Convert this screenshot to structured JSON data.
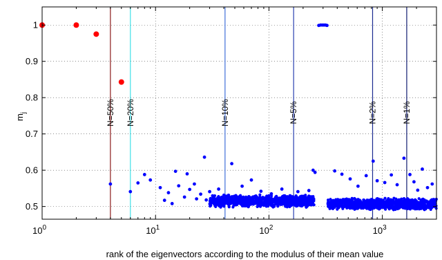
{
  "chart_data": {
    "type": "scatter",
    "title": "",
    "xlabel": "rank of the eigenvectors according to the modulus of their mean value",
    "ylabel": "m",
    "ylabel_subscript": "j",
    "xscale": "log",
    "xlim": [
      1,
      3000
    ],
    "ylim": [
      0.465,
      1.05
    ],
    "grid": true,
    "grid_style": "dotted",
    "x_ticks": [
      {
        "value": 1,
        "base": "10",
        "exp": "0"
      },
      {
        "value": 10,
        "base": "10",
        "exp": "1"
      },
      {
        "value": 100,
        "base": "10",
        "exp": "2"
      },
      {
        "value": 1000,
        "base": "10",
        "exp": "3"
      }
    ],
    "y_ticks": [
      {
        "value": 0.5,
        "label": "0.5"
      },
      {
        "value": 0.6,
        "label": "0.6"
      },
      {
        "value": 0.7,
        "label": "0.7"
      },
      {
        "value": 0.8,
        "label": "0.8"
      },
      {
        "value": 0.9,
        "label": "0.9"
      },
      {
        "value": 1.0,
        "label": "1"
      }
    ],
    "vertical_lines": [
      {
        "x": 4,
        "label": "N=50%",
        "color": "#8b1a1a"
      },
      {
        "x": 6,
        "label": "N=20%",
        "color": "#40e0e8"
      },
      {
        "x": 41,
        "label": "N=10%",
        "color": "#3f6fd8"
      },
      {
        "x": 165,
        "label": "N=5%",
        "color": "#2a3fb0"
      },
      {
        "x": 820,
        "label": "N=2%",
        "color": "#1a2a90"
      },
      {
        "x": 1640,
        "label": "N=1%",
        "color": "#101a70"
      }
    ],
    "series": [
      {
        "color": "#ff0000",
        "marker_size": 4,
        "points": [
          [
            1,
            1.0
          ],
          [
            2,
            1.0
          ],
          [
            3,
            0.975
          ],
          [
            5,
            0.843
          ]
        ]
      },
      {
        "color": "#0000ff",
        "marker_size": 2.4,
        "points": [
          [
            4,
            0.562
          ],
          [
            6,
            0.541
          ],
          [
            7,
            0.565
          ],
          [
            8,
            0.588
          ],
          [
            9,
            0.573
          ],
          [
            11,
            0.552
          ],
          [
            12,
            0.517
          ],
          [
            13,
            0.538
          ],
          [
            14,
            0.508
          ],
          [
            15,
            0.597
          ],
          [
            16,
            0.557
          ],
          [
            18,
            0.526
          ],
          [
            19,
            0.59
          ],
          [
            20,
            0.547
          ],
          [
            22,
            0.562
          ],
          [
            23,
            0.521
          ],
          [
            25,
            0.534
          ],
          [
            27,
            0.636
          ],
          [
            28,
            0.518
          ],
          [
            30,
            0.541
          ],
          [
            32,
            0.529
          ],
          [
            34,
            0.512
          ],
          [
            36,
            0.548
          ],
          [
            39,
            0.521
          ],
          [
            44,
            0.531
          ],
          [
            47,
            0.618
          ],
          [
            52,
            0.524
          ],
          [
            58,
            0.556
          ],
          [
            63,
            0.515
          ],
          [
            70,
            0.573
          ],
          [
            76,
            0.528
          ],
          [
            85,
            0.542
          ],
          [
            92,
            0.51
          ],
          [
            105,
            0.535
          ],
          [
            115,
            0.52
          ],
          [
            130,
            0.548
          ],
          [
            145,
            0.527
          ],
          [
            160,
            0.515
          ],
          [
            180,
            0.541
          ],
          [
            200,
            0.528
          ],
          [
            225,
            0.544
          ],
          [
            245,
            0.6
          ],
          [
            255,
            0.594
          ],
          [
            275,
            0.999
          ],
          [
            285,
            1.0
          ],
          [
            295,
            1.0
          ],
          [
            305,
            1.0
          ],
          [
            315,
            1.0
          ],
          [
            325,
            0.999
          ],
          [
            380,
            0.598
          ],
          [
            440,
            0.589
          ],
          [
            520,
            0.576
          ],
          [
            610,
            0.556
          ],
          [
            720,
            0.585
          ],
          [
            830,
            0.625
          ],
          [
            900,
            0.571
          ],
          [
            1050,
            0.566
          ],
          [
            1200,
            0.587
          ],
          [
            1350,
            0.56
          ],
          [
            1550,
            0.633
          ],
          [
            1750,
            0.588
          ],
          [
            1900,
            0.568
          ],
          [
            2050,
            0.545
          ],
          [
            2250,
            0.603
          ],
          [
            2500,
            0.552
          ],
          [
            2750,
            0.562
          ]
        ],
        "bands": [
          {
            "x_from": 30,
            "x_to": 250,
            "y_center": 0.515,
            "y_spread": 0.018
          },
          {
            "x_from": 330,
            "x_to": 3000,
            "y_center": 0.507,
            "y_spread": 0.017
          }
        ]
      }
    ]
  }
}
